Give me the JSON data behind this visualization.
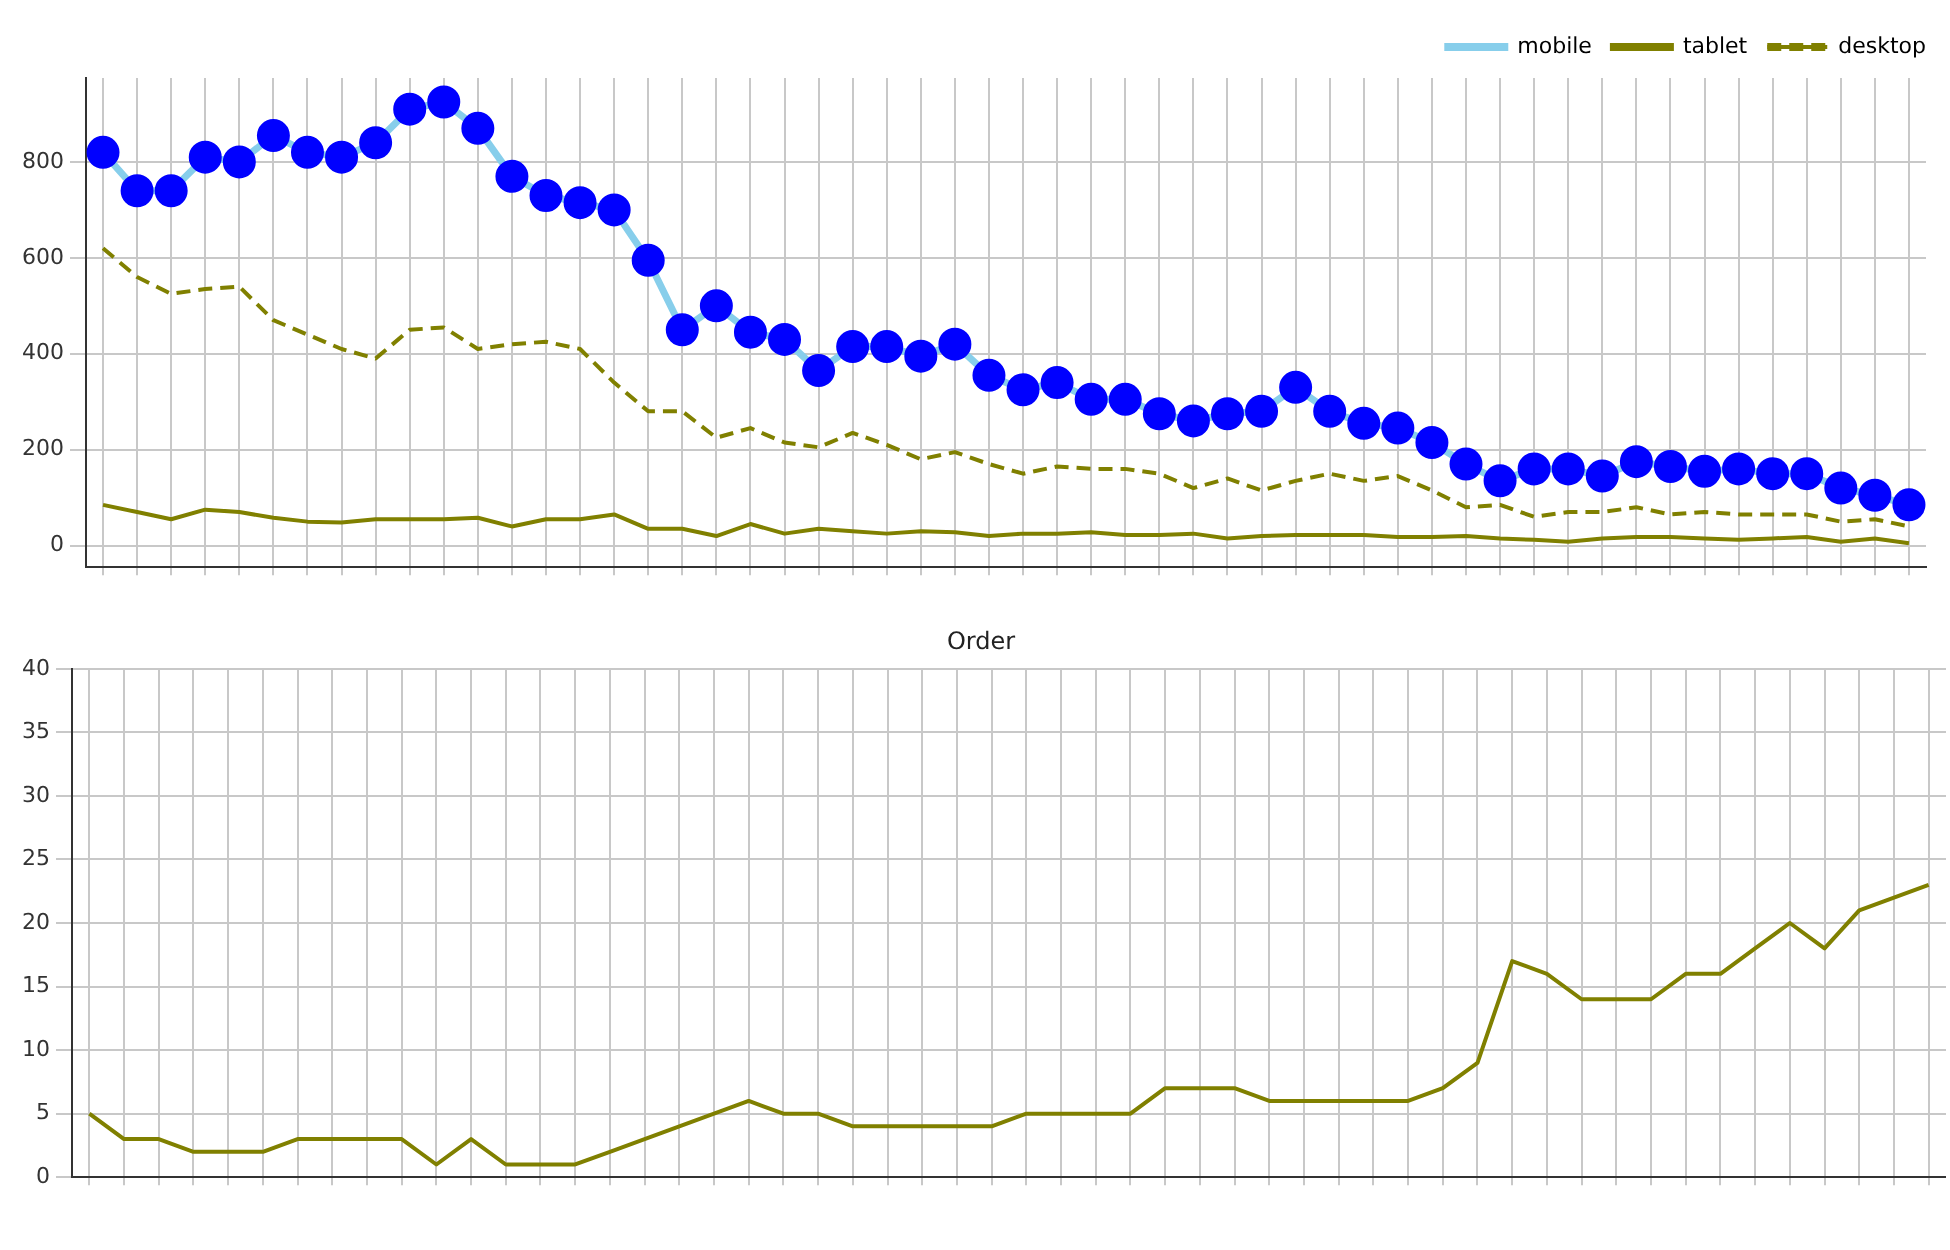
{
  "chart_data": [
    {
      "type": "line",
      "categories": [
        null,
        null,
        null,
        null,
        null,
        null,
        null,
        null,
        null,
        null,
        null,
        null,
        null,
        null,
        null,
        null,
        null,
        null,
        null,
        null,
        null,
        null,
        null,
        null,
        null,
        null,
        null,
        null,
        null,
        null,
        null,
        null,
        null,
        null,
        null,
        null,
        null,
        null,
        null,
        null,
        null,
        null,
        null,
        null,
        null,
        null,
        null,
        null,
        null,
        null,
        null,
        null,
        null,
        null
      ],
      "series": [
        {
          "name": "mobile",
          "color": "#87ceeb",
          "marker": "circle",
          "colors": [
            "#0000ff",
            "#0000ff",
            "#0000ff",
            "#0000ff",
            "#0000ff",
            "#0000ff",
            "#0000ff",
            "#0000ff",
            "#0000ff",
            "#0000ff",
            "#0000ff",
            "#0000ff",
            "#0000ff",
            "#0000ff",
            "#0000ff",
            "#0000ff",
            "#0000ff",
            "#0000ff",
            "#0000ff",
            "#0000ff",
            "#0000ff",
            "#0000ff",
            "#0000ff",
            "#0000ff",
            "#0000ff",
            "#0000ff",
            "#0000ff",
            "#0000ff",
            "#0000ff",
            "#0000ff",
            "#0000ff",
            "#0000ff",
            "#0000ff",
            "#0000ff",
            "#0000ff",
            "#0000ff",
            "#0000ff",
            "#0000ff",
            "#0000ff",
            "#0000ff",
            "#0000ff",
            "#0000ff",
            "#0000ff",
            "#0000ff",
            "#0000ff",
            "#0000ff",
            "#0000ff",
            "#0000ff",
            "#0000ff",
            "#0000ff",
            "#0000ff",
            "#0000ff",
            "#0000ff",
            "#0000ff"
          ],
          "values": [
            820,
            740,
            740,
            810,
            800,
            855,
            820,
            810,
            840,
            910,
            925,
            870,
            770,
            730,
            715,
            700,
            595,
            450,
            500,
            445,
            430,
            365,
            415,
            415,
            395,
            420,
            355,
            325,
            340,
            305,
            305,
            275,
            260,
            275,
            280,
            330,
            280,
            255,
            245,
            215,
            170,
            135,
            160,
            160,
            145,
            175,
            165,
            155,
            160,
            150,
            150,
            120,
            105,
            85
          ]
        },
        {
          "name": "tablet",
          "color": "#808000",
          "line_style": "solid",
          "values": [
            85,
            70,
            55,
            75,
            70,
            58,
            50,
            48,
            55,
            55,
            55,
            58,
            40,
            55,
            55,
            65,
            35,
            35,
            20,
            45,
            25,
            35,
            30,
            25,
            30,
            28,
            20,
            25,
            25,
            28,
            22,
            22,
            25,
            15,
            20,
            22,
            22,
            22,
            18,
            18,
            20,
            15,
            12,
            8,
            15,
            18,
            18,
            15,
            12,
            15,
            18,
            8,
            15,
            5
          ]
        },
        {
          "name": "desktop",
          "color": "#808000",
          "line_style": "dashed",
          "values": [
            620,
            560,
            525,
            535,
            540,
            470,
            440,
            410,
            390,
            450,
            455,
            410,
            420,
            425,
            410,
            340,
            280,
            280,
            225,
            245,
            215,
            205,
            235,
            210,
            180,
            195,
            170,
            150,
            165,
            160,
            160,
            150,
            120,
            140,
            115,
            135,
            150,
            135,
            145,
            115,
            80,
            85,
            60,
            70,
            70,
            80,
            65,
            70,
            65,
            65,
            65,
            50,
            55,
            40
          ]
        }
      ],
      "ylim": [
        -45,
        975
      ],
      "yticks": [
        0,
        200,
        400,
        600,
        800
      ],
      "grid": true,
      "legend": "top right",
      "marker": "none"
    },
    {
      "type": "line",
      "title": "Order",
      "categories": [
        null,
        null,
        null,
        null,
        null,
        null,
        null,
        null,
        null,
        null,
        null,
        null,
        null,
        null,
        null,
        null,
        null,
        null,
        null,
        null,
        null,
        null,
        null,
        null,
        null,
        null,
        null,
        null,
        null,
        null,
        null,
        null,
        null,
        null,
        null,
        null,
        null,
        null,
        null,
        null,
        null,
        null,
        null,
        null,
        null,
        null,
        null,
        null,
        null,
        null,
        null,
        null,
        null,
        null
      ],
      "series": [
        {
          "color": "#808000",
          "values": [
            5,
            3,
            3,
            2,
            2,
            2,
            3,
            3,
            3,
            3,
            1,
            3,
            1,
            1,
            1,
            2,
            3,
            4,
            5,
            6,
            5,
            5,
            4,
            4,
            4,
            4,
            4,
            5,
            5,
            5,
            5,
            7,
            7,
            7,
            6,
            6,
            6,
            6,
            6,
            7,
            9,
            17,
            16,
            14,
            14,
            14,
            16,
            16,
            18,
            20,
            18,
            21,
            22,
            23
          ]
        }
      ],
      "ylim": [
        0,
        40
      ],
      "yticks": [
        0,
        5,
        10,
        15,
        20,
        25,
        30,
        35,
        40
      ],
      "grid": true
    }
  ]
}
